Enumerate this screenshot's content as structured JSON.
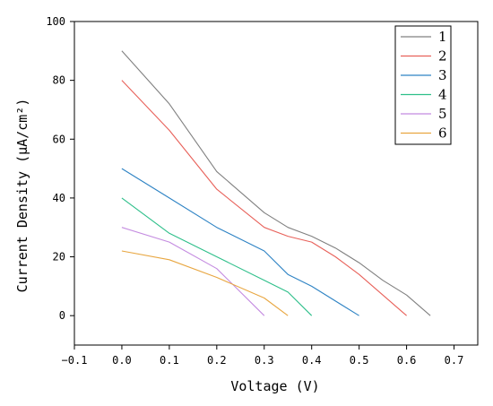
{
  "chart_data": {
    "type": "line",
    "title": "",
    "xlabel": "Voltage (V)",
    "ylabel": "Current Density (μA/cm²)",
    "xlim": [
      -0.1,
      0.75
    ],
    "ylim": [
      -10,
      100
    ],
    "xticks": [
      -0.1,
      0.0,
      0.1,
      0.2,
      0.3,
      0.4,
      0.5,
      0.6,
      0.7
    ],
    "xtick_labels": [
      "−0.1",
      "0.0",
      "0.1",
      "0.2",
      "0.3",
      "0.4",
      "0.5",
      "0.6",
      "0.7"
    ],
    "yticks": [
      0,
      20,
      40,
      60,
      80,
      100
    ],
    "ytick_labels": [
      "0",
      "20",
      "40",
      "60",
      "80",
      "100"
    ],
    "grid": false,
    "legend_position": "top-right",
    "series": [
      {
        "name": "1",
        "color": "#808080",
        "points": [
          [
            0.0,
            90
          ],
          [
            0.1,
            72
          ],
          [
            0.2,
            49
          ],
          [
            0.3,
            35
          ],
          [
            0.35,
            30
          ],
          [
            0.4,
            27
          ],
          [
            0.45,
            23
          ],
          [
            0.5,
            18
          ],
          [
            0.55,
            12
          ],
          [
            0.6,
            7
          ],
          [
            0.65,
            0
          ]
        ]
      },
      {
        "name": "2",
        "color": "#e8615a",
        "points": [
          [
            0.0,
            80
          ],
          [
            0.1,
            63
          ],
          [
            0.2,
            43
          ],
          [
            0.3,
            30
          ],
          [
            0.35,
            27
          ],
          [
            0.4,
            25
          ],
          [
            0.45,
            20
          ],
          [
            0.5,
            14
          ],
          [
            0.55,
            7
          ],
          [
            0.6,
            0
          ]
        ]
      },
      {
        "name": "3",
        "color": "#2e83c4",
        "points": [
          [
            0.0,
            50
          ],
          [
            0.1,
            40
          ],
          [
            0.2,
            30
          ],
          [
            0.3,
            22
          ],
          [
            0.35,
            14
          ],
          [
            0.4,
            10
          ],
          [
            0.5,
            0
          ]
        ]
      },
      {
        "name": "4",
        "color": "#2ebf8a",
        "points": [
          [
            0.0,
            40
          ],
          [
            0.1,
            28
          ],
          [
            0.2,
            20
          ],
          [
            0.3,
            12
          ],
          [
            0.35,
            8
          ],
          [
            0.4,
            0
          ]
        ]
      },
      {
        "name": "5",
        "color": "#c48be0",
        "points": [
          [
            0.0,
            30
          ],
          [
            0.1,
            25
          ],
          [
            0.2,
            16
          ],
          [
            0.3,
            0
          ]
        ]
      },
      {
        "name": "6",
        "color": "#e8a640",
        "points": [
          [
            0.0,
            22
          ],
          [
            0.1,
            19
          ],
          [
            0.2,
            13
          ],
          [
            0.3,
            6
          ],
          [
            0.35,
            0
          ]
        ]
      }
    ]
  }
}
